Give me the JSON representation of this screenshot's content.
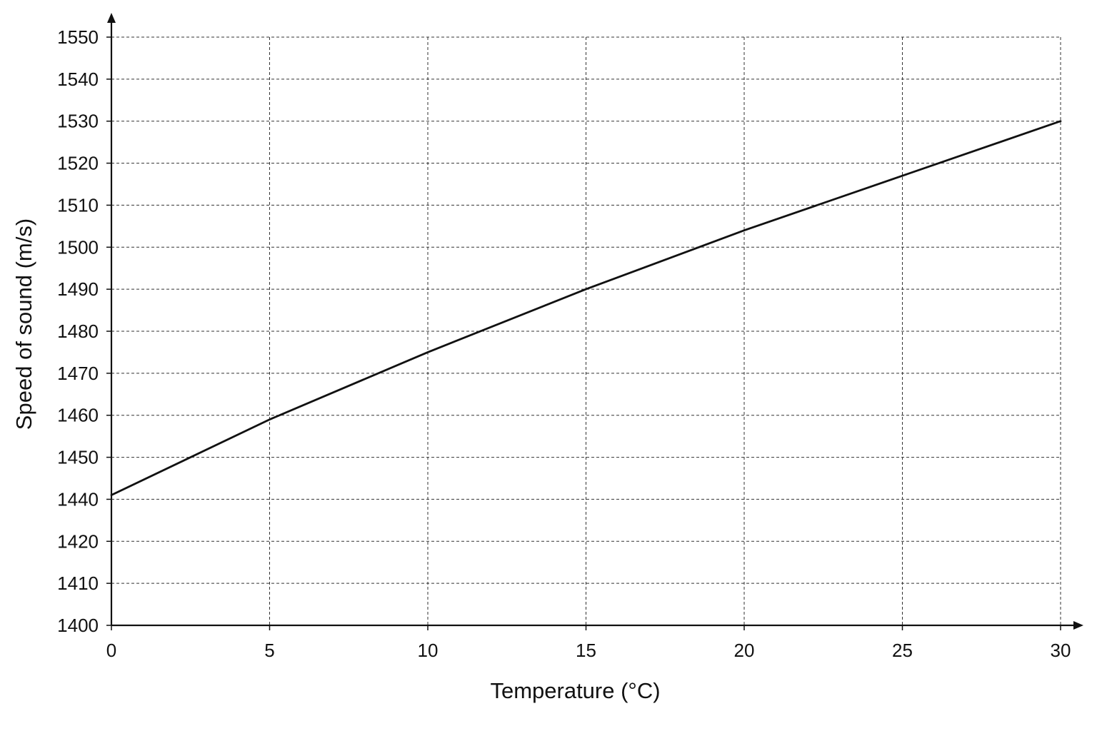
{
  "chart_data": {
    "type": "line",
    "title": "",
    "xlabel": "Temperature (°C)",
    "ylabel": "Speed of sound (m/s)",
    "xlim": [
      0,
      30
    ],
    "x_ticks": [
      0,
      5,
      10,
      15,
      20,
      25,
      30
    ],
    "x_tick_labels": [
      "0",
      "5",
      "10",
      "15",
      "20",
      "25",
      "30"
    ],
    "y_ticks": [
      1400,
      1410,
      1420,
      1440,
      1450,
      1460,
      1470,
      1480,
      1490,
      1500,
      1510,
      1520,
      1530,
      1540,
      1550
    ],
    "y_tick_labels": [
      "1400",
      "1410",
      "1420",
      "1440",
      "1450",
      "1460",
      "1470",
      "1480",
      "1490",
      "1500",
      "1510",
      "1520",
      "1530",
      "1540",
      "1550"
    ],
    "grid": true,
    "series": [
      {
        "x": [
          0,
          5,
          10,
          15,
          20,
          25,
          30
        ],
        "y": [
          1441,
          1459,
          1475,
          1490,
          1504,
          1517,
          1530
        ]
      }
    ]
  }
}
